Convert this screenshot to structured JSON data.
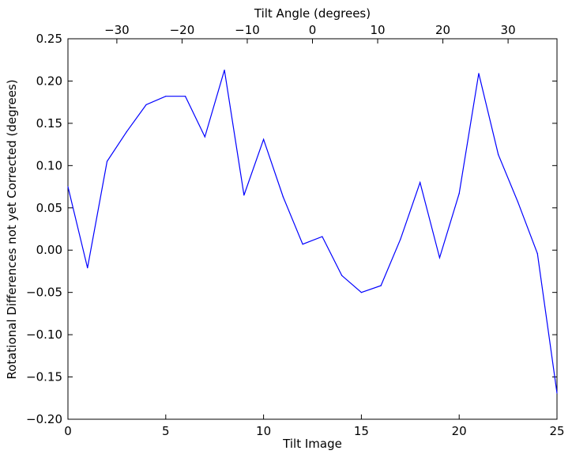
{
  "chart_data": {
    "type": "line",
    "title": "",
    "xlabel": "Tilt Image",
    "ylabel": "Rotational Differences not yet Corrected (degrees)",
    "x2label": "Tilt Angle (degrees)",
    "xlim": [
      0,
      25
    ],
    "ylim": [
      -0.2,
      0.25
    ],
    "x2lim": [
      -37.5,
      37.5
    ],
    "xticks": [
      0,
      5,
      10,
      15,
      20,
      25
    ],
    "yticks": [
      -0.2,
      -0.15,
      -0.1,
      -0.05,
      0.0,
      0.05,
      0.1,
      0.15,
      0.2,
      0.25
    ],
    "yticklabels": [
      "−0.20",
      "−0.15",
      "−0.10",
      "−0.05",
      "0.00",
      "0.05",
      "0.10",
      "0.15",
      "0.20",
      "0.25"
    ],
    "x2ticks": [
      -30,
      -20,
      -10,
      0,
      10,
      20,
      30
    ],
    "x2ticklabels": [
      "−30",
      "−20",
      "−10",
      "0",
      "10",
      "20",
      "30"
    ],
    "grid": false,
    "series": [
      {
        "color": "#0000ff",
        "x": [
          0,
          1,
          2,
          3,
          4,
          5,
          6,
          7,
          8,
          9,
          10,
          11,
          12,
          13,
          14,
          15,
          16,
          17,
          18,
          19,
          20,
          21,
          22,
          23,
          24,
          25
        ],
        "values": [
          0.075,
          -0.021,
          0.105,
          0.14,
          0.172,
          0.182,
          0.182,
          0.134,
          0.213,
          0.065,
          0.131,
          0.063,
          0.007,
          0.016,
          -0.03,
          -0.05,
          -0.042,
          0.013,
          0.08,
          -0.009,
          0.067,
          0.209,
          0.113,
          0.057,
          -0.004,
          -0.169
        ]
      }
    ]
  }
}
